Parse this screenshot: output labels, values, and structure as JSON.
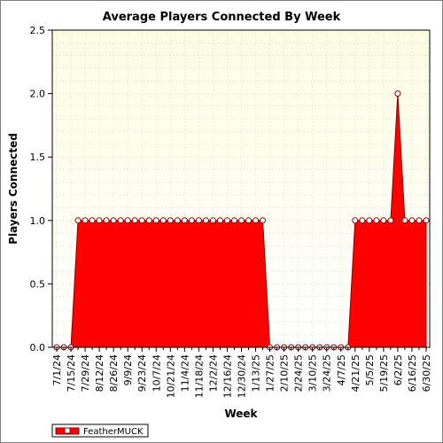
{
  "chart_data": {
    "type": "area",
    "title": "Average Players Connected By Week",
    "xlabel": "Week",
    "ylabel": "Players Connected",
    "ylim": [
      0,
      2.5
    ],
    "yticks": [
      "0.0",
      "0.5",
      "1.0",
      "1.5",
      "2.0",
      "2.5"
    ],
    "grid": true,
    "legend_position": "bottom-left",
    "x": [
      "7/1/24",
      "7/8/24",
      "7/15/24",
      "7/22/24",
      "7/29/24",
      "8/5/24",
      "8/12/24",
      "8/19/24",
      "8/26/24",
      "9/2/24",
      "9/9/24",
      "9/16/24",
      "9/23/24",
      "9/30/24",
      "10/7/24",
      "10/14/24",
      "10/21/24",
      "10/28/24",
      "11/4/24",
      "11/11/24",
      "11/18/24",
      "11/25/24",
      "12/2/24",
      "12/9/24",
      "12/16/24",
      "12/23/24",
      "12/30/24",
      "1/6/25",
      "1/13/25",
      "1/20/25",
      "1/27/25",
      "2/3/25",
      "2/10/25",
      "2/17/25",
      "2/24/25",
      "3/3/25",
      "3/10/25",
      "3/17/25",
      "3/24/25",
      "3/31/25",
      "4/7/25",
      "4/14/25",
      "4/21/25",
      "4/28/25",
      "5/5/25",
      "5/12/25",
      "5/19/25",
      "5/26/25",
      "6/2/25",
      "6/9/25",
      "6/16/25",
      "6/23/25",
      "6/30/25"
    ],
    "tick_labels": [
      "7/1/24",
      "7/15/24",
      "7/29/24",
      "8/12/24",
      "8/26/24",
      "9/9/24",
      "9/23/24",
      "10/7/24",
      "10/21/24",
      "11/4/24",
      "11/18/24",
      "12/2/24",
      "12/16/24",
      "12/30/24",
      "1/13/25",
      "1/27/25",
      "2/10/25",
      "2/24/25",
      "3/10/25",
      "3/24/25",
      "4/7/25",
      "4/21/25",
      "5/5/25",
      "5/19/25",
      "6/2/25",
      "6/16/25",
      "6/30/25"
    ],
    "series": [
      {
        "name": "FeatherMUCK",
        "color": "#ff0000",
        "values": [
          0,
          0,
          0,
          1,
          1,
          1,
          1,
          1,
          1,
          1,
          1,
          1,
          1,
          1,
          1,
          1,
          1,
          1,
          1,
          1,
          1,
          1,
          1,
          1,
          1,
          1,
          1,
          1,
          1,
          1,
          0,
          0,
          0,
          0,
          0,
          0,
          0,
          0,
          0,
          0,
          0,
          0,
          1,
          1,
          1,
          1,
          1,
          1,
          2,
          1,
          1,
          1,
          1
        ]
      }
    ],
    "colors": {
      "plot_background_top": "#fdfde4",
      "plot_background_bottom": "#ffffff",
      "grid": "#c8c8a0",
      "fill": "#ff0000",
      "line": "#8b0000"
    }
  }
}
